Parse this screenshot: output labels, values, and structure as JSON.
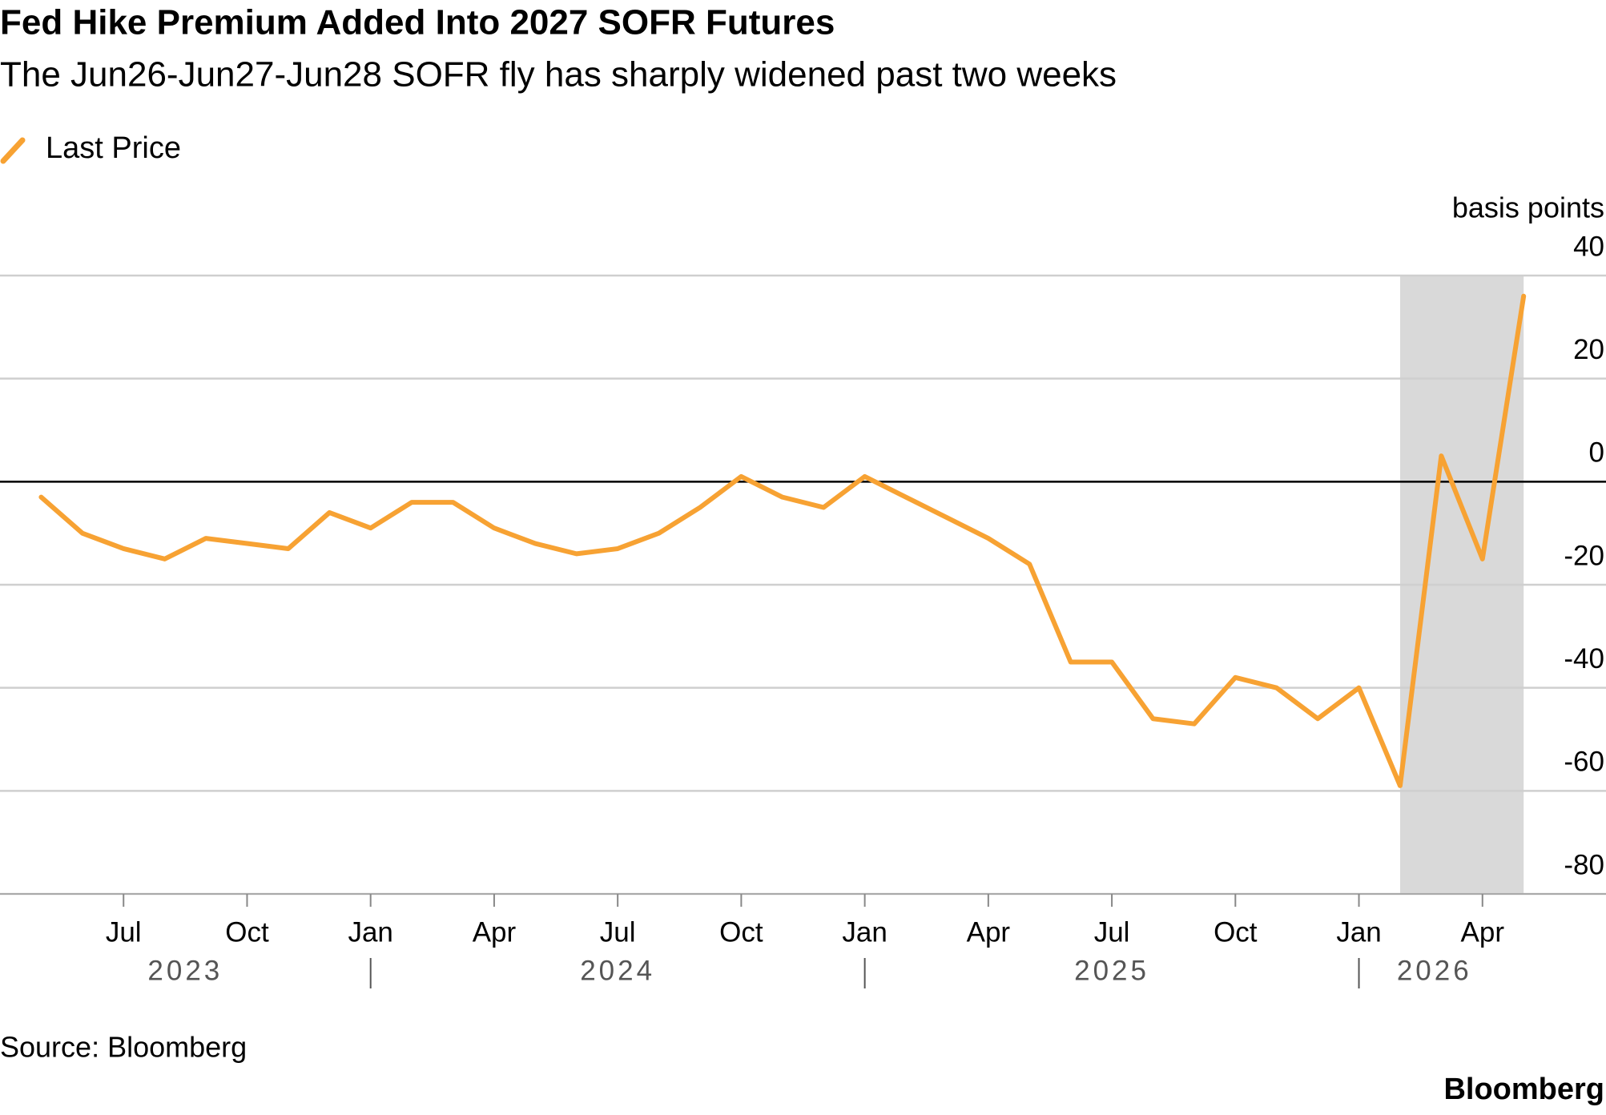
{
  "chart_data": {
    "type": "line",
    "title": "Fed Hike Premium Added Into 2027 SOFR Futures",
    "subtitle": "The Jun26-Jun27-Jun28 SOFR fly has sharply widened past two weeks",
    "y_axis_label": "basis points",
    "source": "Source: Bloomberg",
    "brand": "Bloomberg",
    "x": [
      "2023-05",
      "2023-06",
      "2023-07",
      "2023-08",
      "2023-09",
      "2023-10",
      "2023-11",
      "2023-12",
      "2024-01",
      "2024-02",
      "2024-03",
      "2024-04",
      "2024-05",
      "2024-06",
      "2024-07",
      "2024-08",
      "2024-09",
      "2024-10",
      "2024-11",
      "2024-12",
      "2025-01",
      "2025-02",
      "2025-03",
      "2025-04",
      "2025-05",
      "2025-06",
      "2025-07",
      "2025-08",
      "2025-09",
      "2025-10",
      "2025-11",
      "2025-12",
      "2026-01",
      "2026-02",
      "2026-03",
      "2026-04",
      "2026-05"
    ],
    "series": [
      {
        "name": "Last Price",
        "color": "#f7a233",
        "values": [
          -3,
          -10,
          -13,
          -15,
          -11,
          -12,
          -13,
          -6,
          -9,
          -4,
          -4,
          -9,
          -12,
          -14,
          -13,
          -10,
          -5,
          1,
          -3,
          -5,
          1,
          -3,
          -7,
          -11,
          -16,
          -35,
          -35,
          -46,
          -47,
          -38,
          -40,
          -46,
          -40,
          -59,
          5,
          -15,
          36
        ]
      }
    ],
    "xlim": [
      "2023-04",
      "2026-07"
    ],
    "xticks": [
      {
        "value": "2023-07",
        "label": "Jul"
      },
      {
        "value": "2023-10",
        "label": "Oct"
      },
      {
        "value": "2024-01",
        "label": "Jan"
      },
      {
        "value": "2024-04",
        "label": "Apr"
      },
      {
        "value": "2024-07",
        "label": "Jul"
      },
      {
        "value": "2024-10",
        "label": "Oct"
      },
      {
        "value": "2025-01",
        "label": "Jan"
      },
      {
        "value": "2025-04",
        "label": "Apr"
      },
      {
        "value": "2025-07",
        "label": "Jul"
      },
      {
        "value": "2025-10",
        "label": "Oct"
      },
      {
        "value": "2026-01",
        "label": "Jan"
      },
      {
        "value": "2026-04",
        "label": "Apr"
      }
    ],
    "year_labels": [
      "2023",
      "2024",
      "2025",
      "2026"
    ],
    "ylim": [
      -80,
      40
    ],
    "yticks": [
      -80,
      -60,
      -40,
      -20,
      0,
      20,
      40
    ],
    "grid": true,
    "highlight_range": [
      "2026-02",
      "2026-05"
    ],
    "highlight_color": "#d9d9d9",
    "legend": "top-left"
  }
}
